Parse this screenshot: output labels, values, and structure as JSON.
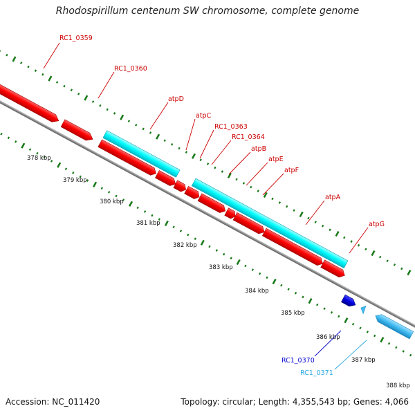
{
  "header": {
    "title": "Rhodospirillum centenum SW chromosome, complete genome"
  },
  "footer": {
    "accession": "Accession: NC_011420",
    "summary": "Topology: circular; Length: 4,355,543 bp; Genes: 4,066"
  },
  "colors": {
    "cds": "#ff0000",
    "rna": "#00ffff",
    "blue_gene": "#0000dd",
    "light_blue_gene": "#3ebaf0",
    "backbone": "#888888",
    "ticks": "#1a7a1a",
    "label_red": "#cc0000"
  },
  "scale_labels": [
    "378 kbp",
    "379 kbp",
    "380 kbp",
    "381 kbp",
    "382 kbp",
    "383 kbp",
    "384 kbp",
    "385 kbp",
    "386 kbp",
    "387 kbp",
    "388 kbp"
  ],
  "gene_labels": [
    {
      "id": "RC1_0359",
      "text": "RC1_0359",
      "color": "#cc0000"
    },
    {
      "id": "RC1_0360",
      "text": "RC1_0360",
      "color": "#cc0000"
    },
    {
      "id": "atpD",
      "text": "atpD",
      "color": "#cc0000"
    },
    {
      "id": "atpC",
      "text": "atpC",
      "color": "#cc0000"
    },
    {
      "id": "RC1_0363",
      "text": "RC1_0363",
      "color": "#cc0000"
    },
    {
      "id": "RC1_0364",
      "text": "RC1_0364",
      "color": "#cc0000"
    },
    {
      "id": "atpB",
      "text": "atpB",
      "color": "#cc0000"
    },
    {
      "id": "atpE",
      "text": "atpE",
      "color": "#cc0000"
    },
    {
      "id": "atpF",
      "text": "atpF",
      "color": "#cc0000"
    },
    {
      "id": "atpA",
      "text": "atpA",
      "color": "#cc0000"
    },
    {
      "id": "atpG",
      "text": "atpG",
      "color": "#cc0000"
    },
    {
      "id": "RC1_0370",
      "text": "RC1_0370",
      "color": "#0000cc"
    },
    {
      "id": "RC1_0371",
      "text": "RC1_0371",
      "color": "#2aa8e0"
    }
  ]
}
